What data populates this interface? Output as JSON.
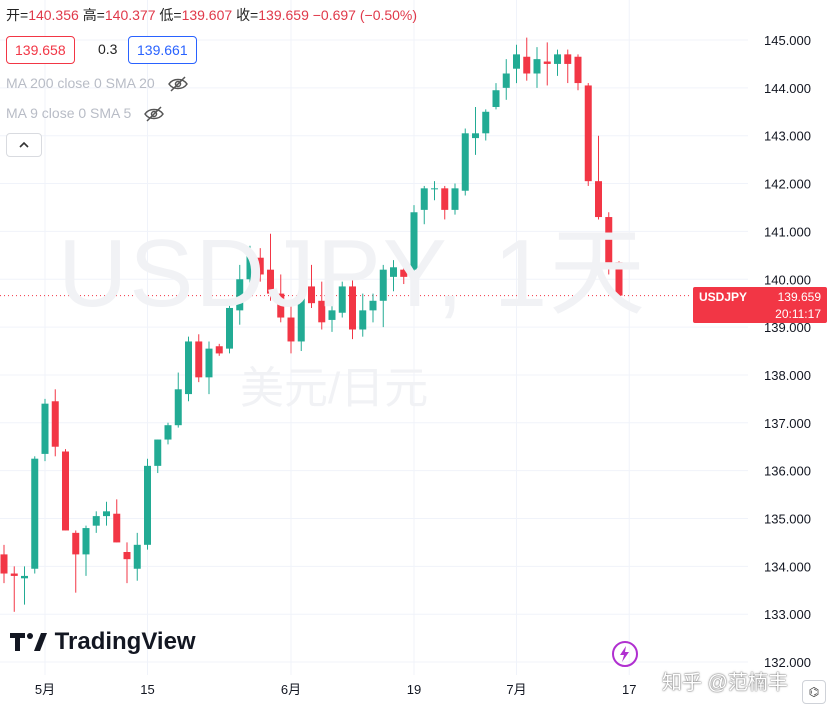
{
  "header": {
    "open_label": "开=",
    "open": "140.356",
    "high_label": "高=",
    "high": "140.377",
    "low_label": "低=",
    "low": "139.607",
    "close_label": "收=",
    "close": "139.659",
    "change": "−0.697 (−0.50%)"
  },
  "quote": {
    "bid": "139.658",
    "spread": "0.3",
    "ask": "139.661"
  },
  "indicators": [
    {
      "label": "MA 200 close 0 SMA 20",
      "icon": "eye-hidden-icon"
    },
    {
      "label": "MA 9 close 0 SMA 5",
      "icon": "eye-hidden-icon"
    }
  ],
  "watermark": {
    "symbol": "USDJPY, 1天",
    "name": "美元/日元"
  },
  "last_price": {
    "symbol": "USDJPY",
    "price": "139.659",
    "countdown": "20:11:17"
  },
  "branding": {
    "logo_text": "TradingView",
    "overlay_text": "知乎 @范楠丰"
  },
  "colors": {
    "up": "#22ab94",
    "down": "#f23645",
    "grid": "#f0f3fa",
    "axis_text": "#131722",
    "price_line": "#f23645"
  },
  "chart_data": {
    "type": "candlestick",
    "ylim": [
      132.0,
      145.0
    ],
    "y_ticks": [
      "145.000",
      "144.000",
      "143.000",
      "142.000",
      "141.000",
      "140.000",
      "139.000",
      "138.000",
      "137.000",
      "136.000",
      "135.000",
      "134.000",
      "133.000",
      "132.000"
    ],
    "x_tick_labels": [
      {
        "label": "5月",
        "index": 4
      },
      {
        "label": "15",
        "index": 14
      },
      {
        "label": "6月",
        "index": 28
      },
      {
        "label": "19",
        "index": 40
      },
      {
        "label": "7月",
        "index": 50
      },
      {
        "label": "17",
        "index": 61
      }
    ],
    "candles": [
      [
        134.25,
        134.45,
        133.65,
        133.85
      ],
      [
        133.85,
        134.0,
        133.05,
        133.8
      ],
      [
        133.75,
        134.0,
        133.2,
        133.8
      ],
      [
        133.95,
        136.3,
        133.85,
        136.25
      ],
      [
        136.35,
        137.5,
        136.2,
        137.4
      ],
      [
        137.45,
        137.7,
        136.3,
        136.5
      ],
      [
        136.4,
        136.45,
        134.75,
        134.75
      ],
      [
        134.7,
        134.75,
        133.45,
        134.25
      ],
      [
        134.25,
        134.85,
        133.8,
        134.8
      ],
      [
        134.85,
        135.15,
        134.7,
        135.05
      ],
      [
        135.05,
        135.35,
        134.85,
        135.15
      ],
      [
        135.1,
        135.4,
        134.5,
        134.5
      ],
      [
        134.3,
        134.5,
        133.65,
        134.15
      ],
      [
        133.95,
        134.7,
        133.7,
        134.45
      ],
      [
        134.45,
        136.25,
        134.35,
        136.1
      ],
      [
        136.1,
        136.65,
        135.95,
        136.65
      ],
      [
        136.65,
        137.0,
        136.55,
        136.95
      ],
      [
        136.95,
        138.05,
        136.9,
        137.7
      ],
      [
        137.6,
        138.8,
        137.45,
        138.7
      ],
      [
        138.7,
        138.85,
        137.85,
        137.95
      ],
      [
        137.95,
        138.7,
        137.6,
        138.55
      ],
      [
        138.6,
        138.65,
        138.4,
        138.45
      ],
      [
        138.55,
        139.55,
        138.45,
        139.4
      ],
      [
        139.35,
        140.3,
        139.05,
        140.0
      ],
      [
        140.0,
        140.7,
        139.85,
        140.5
      ],
      [
        140.45,
        140.65,
        139.95,
        140.1
      ],
      [
        140.2,
        140.95,
        139.55,
        139.7
      ],
      [
        139.7,
        140.1,
        139.1,
        139.2
      ],
      [
        139.2,
        139.5,
        138.45,
        138.7
      ],
      [
        138.7,
        140.0,
        138.5,
        139.65
      ],
      [
        139.85,
        140.3,
        139.4,
        139.5
      ],
      [
        139.55,
        139.95,
        138.95,
        139.1
      ],
      [
        139.15,
        139.55,
        138.9,
        139.35
      ],
      [
        139.3,
        139.95,
        139.2,
        139.85
      ],
      [
        139.85,
        140.05,
        138.75,
        138.95
      ],
      [
        138.95,
        139.7,
        138.8,
        139.35
      ],
      [
        139.35,
        139.7,
        139.1,
        139.55
      ],
      [
        139.55,
        140.3,
        139.0,
        140.2
      ],
      [
        140.05,
        140.4,
        139.75,
        140.25
      ],
      [
        140.2,
        140.35,
        139.9,
        140.05
      ],
      [
        140.2,
        141.55,
        140.1,
        141.4
      ],
      [
        141.45,
        141.95,
        141.15,
        141.9
      ],
      [
        141.9,
        142.05,
        141.65,
        141.9
      ],
      [
        141.9,
        141.95,
        141.25,
        141.45
      ],
      [
        141.45,
        142.0,
        141.35,
        141.9
      ],
      [
        141.85,
        143.15,
        141.75,
        143.05
      ],
      [
        142.95,
        143.6,
        142.6,
        143.05
      ],
      [
        143.05,
        143.55,
        142.9,
        143.5
      ],
      [
        143.6,
        144.1,
        143.55,
        143.95
      ],
      [
        144.0,
        144.6,
        143.75,
        144.3
      ],
      [
        144.4,
        144.9,
        144.1,
        144.7
      ],
      [
        144.65,
        145.05,
        144.15,
        144.3
      ],
      [
        144.3,
        144.85,
        144.0,
        144.6
      ],
      [
        144.55,
        144.95,
        144.05,
        144.5
      ],
      [
        144.5,
        144.8,
        144.25,
        144.7
      ],
      [
        144.7,
        144.8,
        144.1,
        144.5
      ],
      [
        144.65,
        144.7,
        143.95,
        144.1
      ],
      [
        144.05,
        144.1,
        141.95,
        142.05
      ],
      [
        142.05,
        143.0,
        141.25,
        141.3
      ],
      [
        141.3,
        141.4,
        140.1,
        140.35
      ],
      [
        140.356,
        140.377,
        139.607,
        139.659
      ]
    ]
  }
}
